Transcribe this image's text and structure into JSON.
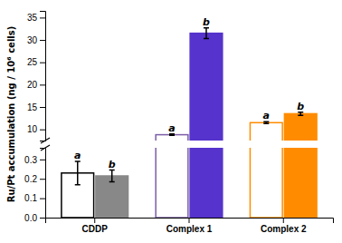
{
  "chart_data": [
    {
      "type": "bar",
      "ylabel": "Ru/Pt accumulation (ng / 10⁶ cells)",
      "categories": [
        "CDDP",
        "Complex 1",
        "Complex 2"
      ],
      "series": [
        {
          "name": "a",
          "colors": [
            "#000000",
            "#7B5EA7",
            "#FF8C00"
          ],
          "values": [
            null,
            8.8,
            11.5
          ],
          "errors": [
            null,
            0.15,
            0.2
          ]
        },
        {
          "name": "b",
          "colors": [
            "#888888",
            "#5533CC",
            "#FF8C00"
          ],
          "values": [
            null,
            31.5,
            13.5
          ],
          "errors": [
            null,
            1.2,
            0.35
          ]
        }
      ],
      "ylim": [
        7.5,
        36.5
      ],
      "yticks": [
        10,
        15,
        20,
        25,
        30,
        35
      ],
      "tick_labels": "y"
    },
    {
      "type": "bar",
      "categories": [
        "CDDP",
        "Complex 1",
        "Complex 2"
      ],
      "series": [
        {
          "name": "a",
          "colors": [
            "#000000",
            "#7B5EA7",
            "#FF8C00"
          ],
          "values": [
            0.23,
            null,
            null
          ],
          "errors": [
            0.06,
            null,
            null
          ]
        },
        {
          "name": "b",
          "colors": [
            "#888888",
            "#5533CC",
            "#FF8C00"
          ],
          "values": [
            0.215,
            null,
            null
          ],
          "errors": [
            0.03,
            null,
            null
          ]
        }
      ],
      "ylim": [
        0.0,
        0.36
      ],
      "yticks": [
        {
          "value": 0.0,
          "label": "0.0"
        },
        {
          "value": 0.1,
          "label": "0.1"
        },
        {
          "value": 0.2,
          "label": "0.2"
        },
        {
          "value": 0.3,
          "label": "0.3"
        }
      ]
    }
  ]
}
